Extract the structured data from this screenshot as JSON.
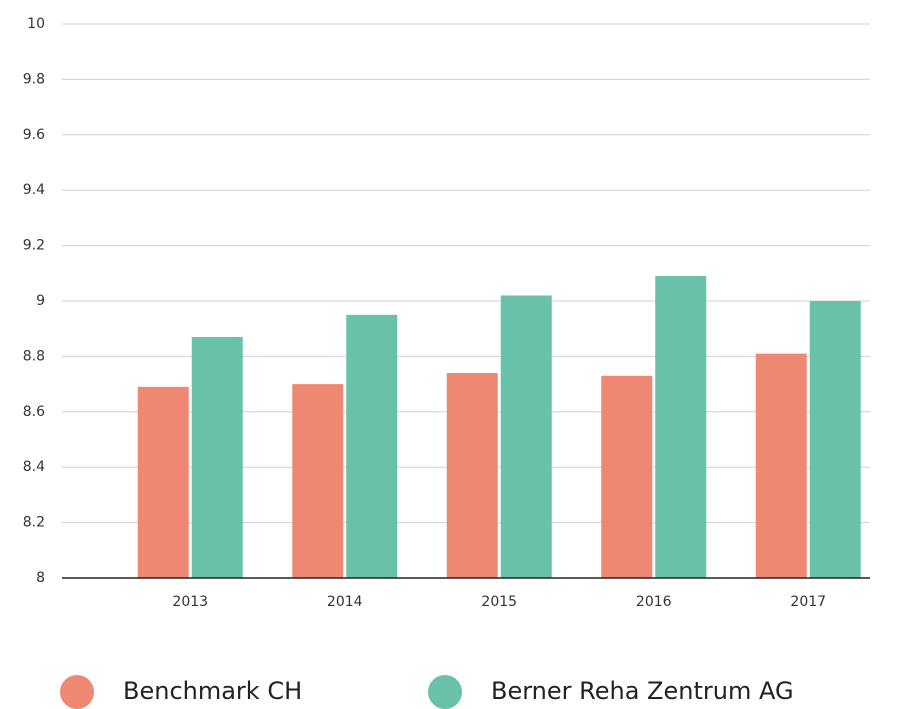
{
  "chart_data": {
    "type": "bar",
    "categories": [
      "2013",
      "2014",
      "2015",
      "2016",
      "2017"
    ],
    "series": [
      {
        "name": "Benchmark CH",
        "color": "#ef8872",
        "values": [
          8.69,
          8.7,
          8.74,
          8.73,
          8.81
        ]
      },
      {
        "name": "Berner Reha Zentrum AG",
        "color": "#68c1a8",
        "values": [
          8.87,
          8.95,
          9.02,
          9.09,
          9.0
        ]
      }
    ],
    "ylim": [
      8,
      10
    ],
    "yticks": [
      8,
      8.2,
      8.4,
      8.6,
      8.8,
      9,
      9.2,
      9.4,
      9.6,
      9.8,
      10
    ],
    "grid": true,
    "legend": "bottom"
  }
}
